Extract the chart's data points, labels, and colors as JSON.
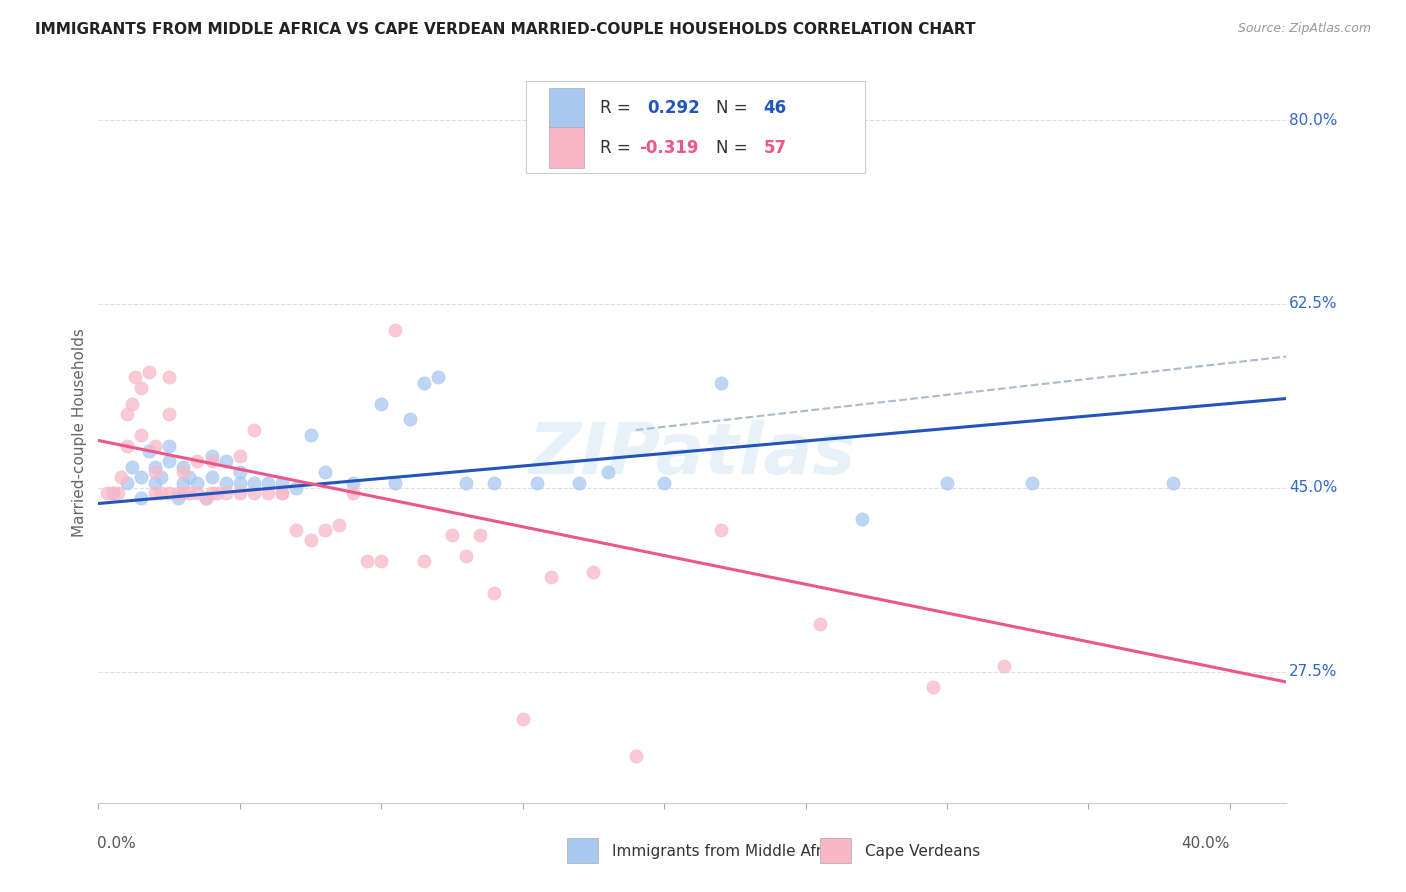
{
  "title": "IMMIGRANTS FROM MIDDLE AFRICA VS CAPE VERDEAN MARRIED-COUPLE HOUSEHOLDS CORRELATION CHART",
  "source": "Source: ZipAtlas.com",
  "ylabel": "Married-couple Households",
  "ytick_labels": [
    "80.0%",
    "62.5%",
    "45.0%",
    "27.5%"
  ],
  "ytick_values": [
    0.8,
    0.625,
    0.45,
    0.275
  ],
  "xlim": [
    0.0,
    0.42
  ],
  "ylim": [
    0.15,
    0.855
  ],
  "blue_color": "#A8C8F0",
  "pink_color": "#F8B8C8",
  "blue_line_color": "#2255BB",
  "pink_line_color": "#EE5588",
  "dashed_line_color": "#AABBCC",
  "watermark": "ZIPatlas",
  "blue_scatter_x": [
    0.005,
    0.01,
    0.012,
    0.015,
    0.015,
    0.018,
    0.02,
    0.02,
    0.022,
    0.025,
    0.025,
    0.028,
    0.03,
    0.03,
    0.032,
    0.035,
    0.038,
    0.04,
    0.04,
    0.045,
    0.045,
    0.05,
    0.05,
    0.055,
    0.06,
    0.065,
    0.07,
    0.075,
    0.08,
    0.09,
    0.1,
    0.105,
    0.11,
    0.115,
    0.12,
    0.13,
    0.14,
    0.155,
    0.17,
    0.18,
    0.2,
    0.22,
    0.27,
    0.3,
    0.33,
    0.38
  ],
  "blue_scatter_y": [
    0.445,
    0.455,
    0.47,
    0.44,
    0.46,
    0.485,
    0.455,
    0.47,
    0.46,
    0.475,
    0.49,
    0.44,
    0.455,
    0.47,
    0.46,
    0.455,
    0.44,
    0.46,
    0.48,
    0.455,
    0.475,
    0.455,
    0.465,
    0.455,
    0.455,
    0.455,
    0.45,
    0.5,
    0.465,
    0.455,
    0.53,
    0.455,
    0.515,
    0.55,
    0.555,
    0.455,
    0.455,
    0.455,
    0.455,
    0.465,
    0.455,
    0.55,
    0.42,
    0.455,
    0.455,
    0.455
  ],
  "pink_scatter_x": [
    0.003,
    0.005,
    0.007,
    0.008,
    0.01,
    0.01,
    0.012,
    0.013,
    0.015,
    0.015,
    0.018,
    0.02,
    0.02,
    0.02,
    0.022,
    0.025,
    0.025,
    0.025,
    0.028,
    0.03,
    0.03,
    0.032,
    0.035,
    0.035,
    0.038,
    0.04,
    0.04,
    0.042,
    0.045,
    0.05,
    0.05,
    0.055,
    0.055,
    0.06,
    0.065,
    0.065,
    0.07,
    0.075,
    0.08,
    0.085,
    0.09,
    0.095,
    0.1,
    0.105,
    0.115,
    0.125,
    0.13,
    0.135,
    0.14,
    0.15,
    0.16,
    0.175,
    0.19,
    0.22,
    0.255,
    0.295,
    0.32
  ],
  "pink_scatter_y": [
    0.445,
    0.445,
    0.445,
    0.46,
    0.49,
    0.52,
    0.53,
    0.555,
    0.5,
    0.545,
    0.56,
    0.445,
    0.465,
    0.49,
    0.445,
    0.445,
    0.52,
    0.555,
    0.445,
    0.445,
    0.465,
    0.445,
    0.445,
    0.475,
    0.44,
    0.445,
    0.475,
    0.445,
    0.445,
    0.445,
    0.48,
    0.445,
    0.505,
    0.445,
    0.445,
    0.445,
    0.41,
    0.4,
    0.41,
    0.415,
    0.445,
    0.38,
    0.38,
    0.6,
    0.38,
    0.405,
    0.385,
    0.405,
    0.35,
    0.23,
    0.365,
    0.37,
    0.195,
    0.41,
    0.32,
    0.26,
    0.28
  ],
  "blue_line_x": [
    0.0,
    0.42
  ],
  "blue_line_y": [
    0.435,
    0.535
  ],
  "pink_line_x": [
    0.0,
    0.42
  ],
  "pink_line_y": [
    0.495,
    0.265
  ],
  "dashed_line_x": [
    0.19,
    0.42
  ],
  "dashed_line_y": [
    0.505,
    0.575
  ],
  "grid_color": "#DDDDEE",
  "spine_color": "#CCCCCC",
  "tick_color": "#AAAAAA",
  "label_color_right": "#3366CC",
  "text_color_dark": "#333333",
  "text_color_gray": "#888888"
}
